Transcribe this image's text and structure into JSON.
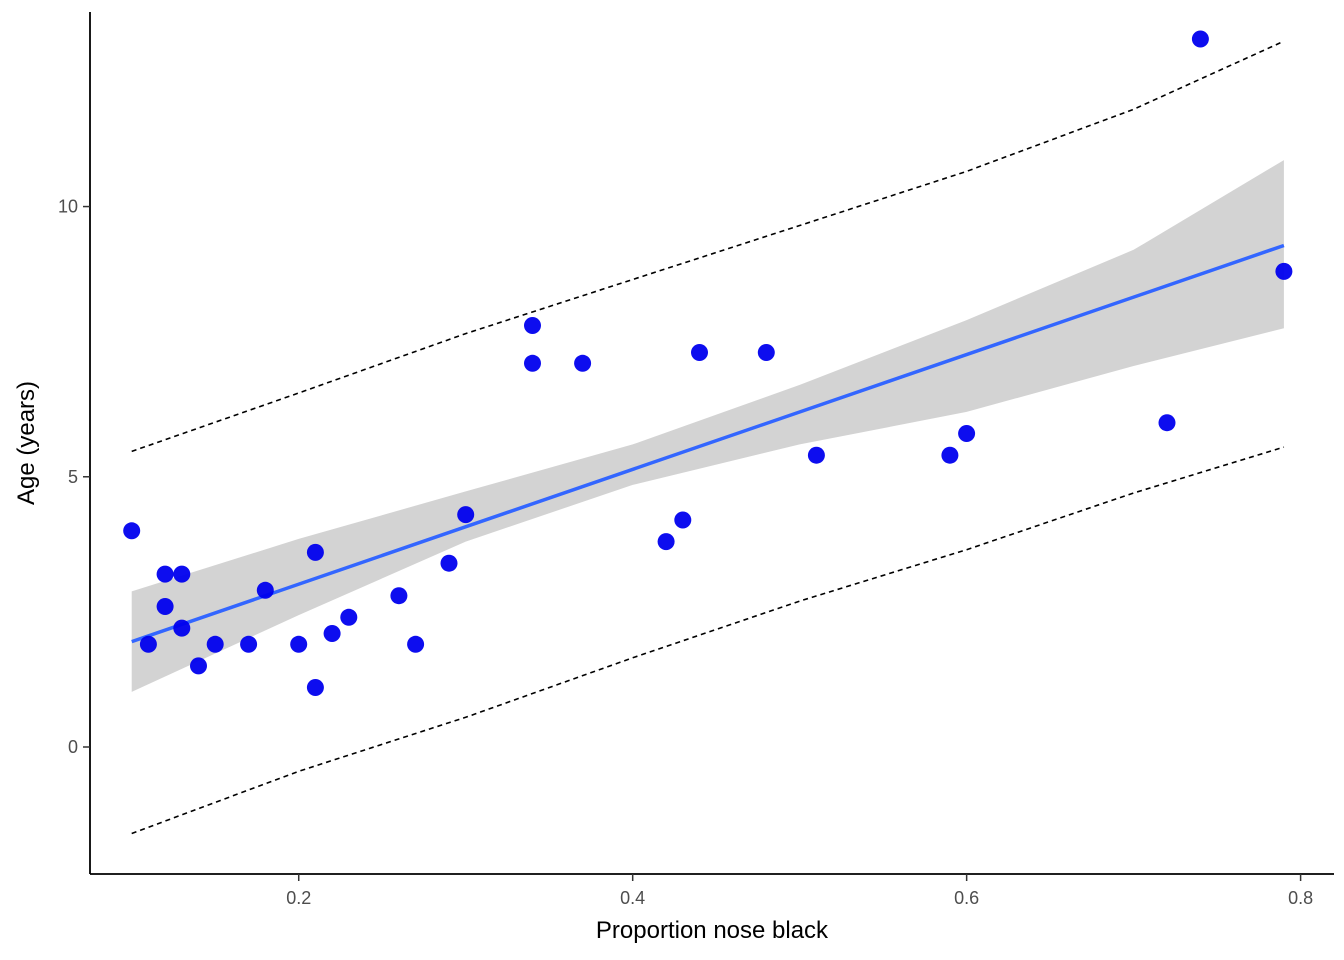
{
  "chart_data": {
    "type": "scatter",
    "title": "",
    "xlabel": "Proportion nose black",
    "ylabel": "Age (years)",
    "xlim": [
      0.075,
      0.82
    ],
    "ylim": [
      -2.35,
      13.6
    ],
    "x_ticks": [
      0.2,
      0.4,
      0.6,
      0.8
    ],
    "x_tick_labels": [
      "0.2",
      "0.4",
      "0.6",
      "0.8"
    ],
    "y_ticks": [
      0,
      5,
      10
    ],
    "y_tick_labels": [
      "0",
      "5",
      "10"
    ],
    "grid": false,
    "legend": "none",
    "points": [
      {
        "x": 0.1,
        "y": 4.0
      },
      {
        "x": 0.11,
        "y": 1.9
      },
      {
        "x": 0.12,
        "y": 3.2
      },
      {
        "x": 0.12,
        "y": 2.6
      },
      {
        "x": 0.13,
        "y": 3.2
      },
      {
        "x": 0.13,
        "y": 2.2
      },
      {
        "x": 0.14,
        "y": 1.5
      },
      {
        "x": 0.15,
        "y": 1.9
      },
      {
        "x": 0.17,
        "y": 1.9
      },
      {
        "x": 0.18,
        "y": 2.9
      },
      {
        "x": 0.2,
        "y": 1.9
      },
      {
        "x": 0.21,
        "y": 3.6
      },
      {
        "x": 0.21,
        "y": 1.1
      },
      {
        "x": 0.22,
        "y": 2.1
      },
      {
        "x": 0.23,
        "y": 2.4
      },
      {
        "x": 0.26,
        "y": 2.8
      },
      {
        "x": 0.27,
        "y": 1.9
      },
      {
        "x": 0.29,
        "y": 3.4
      },
      {
        "x": 0.3,
        "y": 4.3
      },
      {
        "x": 0.34,
        "y": 7.8
      },
      {
        "x": 0.34,
        "y": 7.1
      },
      {
        "x": 0.37,
        "y": 7.1
      },
      {
        "x": 0.42,
        "y": 3.8
      },
      {
        "x": 0.43,
        "y": 4.2
      },
      {
        "x": 0.44,
        "y": 7.3
      },
      {
        "x": 0.48,
        "y": 7.3
      },
      {
        "x": 0.51,
        "y": 5.4
      },
      {
        "x": 0.59,
        "y": 5.4
      },
      {
        "x": 0.6,
        "y": 5.8
      },
      {
        "x": 0.72,
        "y": 6.0
      },
      {
        "x": 0.74,
        "y": 13.1
      },
      {
        "x": 0.79,
        "y": 8.8
      }
    ],
    "regression_line": {
      "x": [
        0.1,
        0.79
      ],
      "y": [
        1.95,
        9.28
      ]
    },
    "confidence_band": {
      "x": [
        0.1,
        0.2,
        0.3,
        0.4,
        0.5,
        0.6,
        0.7,
        0.79
      ],
      "lower": [
        1.02,
        2.44,
        3.8,
        4.85,
        5.6,
        6.2,
        7.05,
        7.75
      ],
      "upper": [
        2.88,
        3.85,
        4.73,
        5.6,
        6.7,
        7.9,
        9.2,
        10.86
      ]
    },
    "prediction_interval": {
      "x": [
        0.1,
        0.2,
        0.3,
        0.4,
        0.5,
        0.6,
        0.7,
        0.79
      ],
      "lower": [
        -1.6,
        -0.45,
        0.55,
        1.65,
        2.7,
        3.65,
        4.7,
        5.55
      ],
      "upper": [
        5.47,
        6.55,
        7.65,
        8.65,
        9.65,
        10.65,
        11.8,
        13.06
      ]
    },
    "colors": {
      "points": "#0000ee",
      "line": "#3366ff",
      "band": "#d3d3d3",
      "interval": "#000000",
      "axis": "#000000",
      "tick_text": "#4d4d4d"
    }
  }
}
